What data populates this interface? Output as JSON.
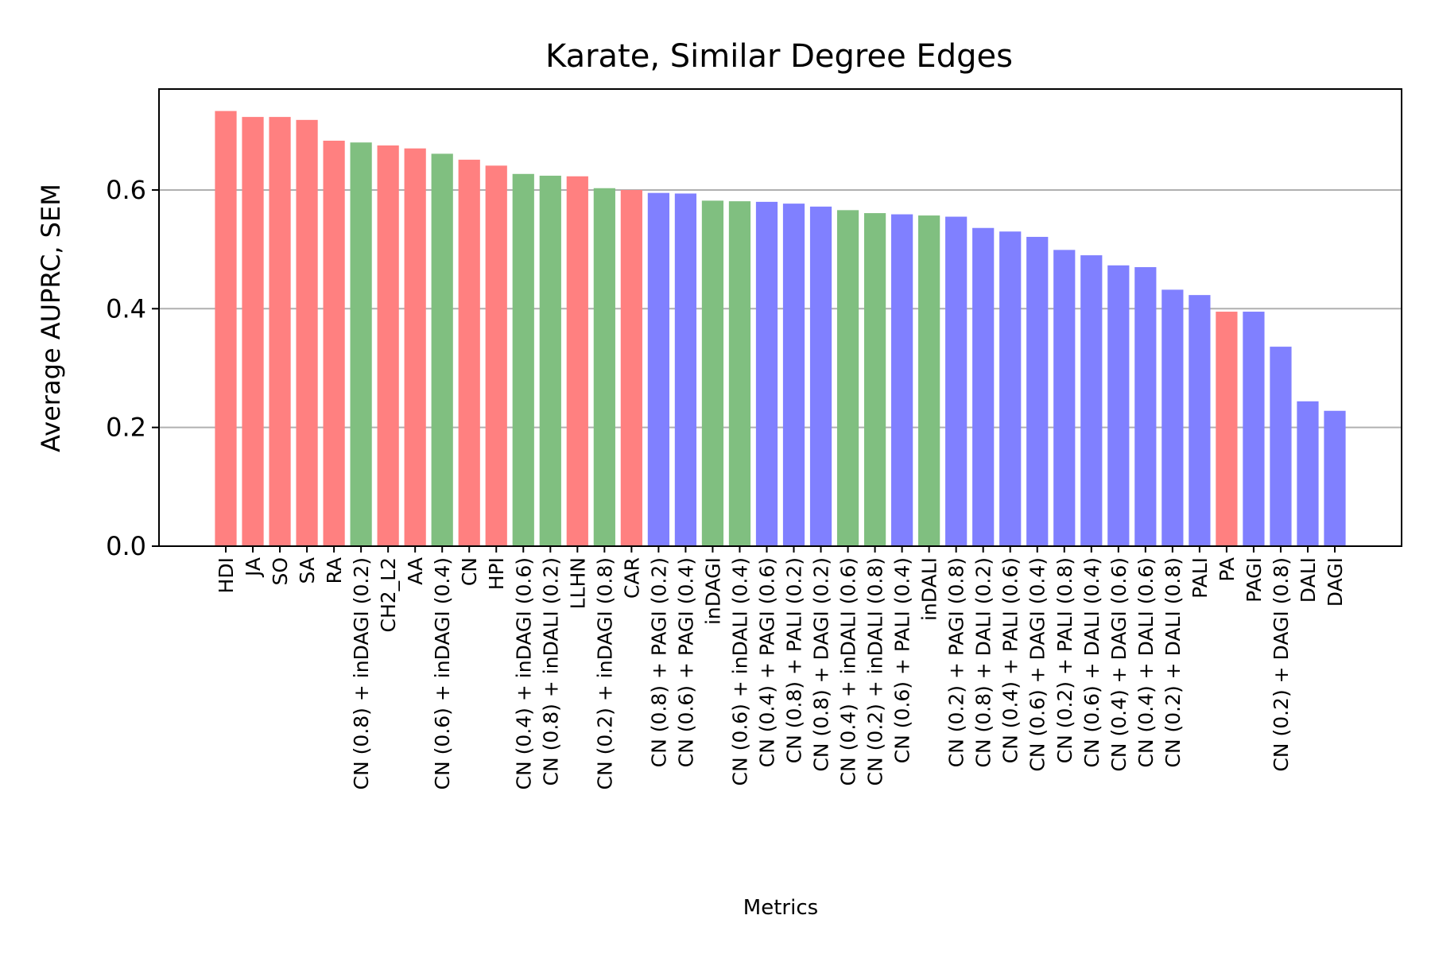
{
  "chart_data": {
    "type": "bar",
    "title": "Karate, Similar Degree Edges",
    "xlabel": "Metrics",
    "ylabel": "Average AUPRC, SEM",
    "ylim": [
      0,
      0.77
    ],
    "yticks": [
      "0.0",
      "0.2",
      "0.4",
      "0.6"
    ],
    "grid": "horizontal",
    "colors": {
      "red": "#ff8080",
      "green": "#80bf80",
      "blue": "#8080ff",
      "grid": "#b0b0b0"
    },
    "categories": [
      "HDI",
      "JA",
      "SO",
      "SA",
      "RA",
      "CN (0.8) + inDAGI (0.2)",
      "CH2_L2",
      "AA",
      "CN (0.6) + inDAGI (0.4)",
      "CN",
      "HPI",
      "CN (0.4) + inDAGI (0.6)",
      "CN (0.8) + inDALI (0.2)",
      "LLHN",
      "CN (0.2) + inDAGI (0.8)",
      "CAR",
      "CN (0.8) + PAGI (0.2)",
      "CN (0.6) + PAGI (0.4)",
      "inDAGI",
      "CN (0.6) + inDALI (0.4)",
      "CN (0.4) + PAGI (0.6)",
      "CN (0.8) + PALI (0.2)",
      "CN (0.8) + DAGI (0.2)",
      "CN (0.4) + inDALI (0.6)",
      "CN (0.2) + inDALI (0.8)",
      "CN (0.6) + PALI (0.4)",
      "inDALI",
      "CN (0.2) + PAGI (0.8)",
      "CN (0.8) + DALI (0.2)",
      "CN (0.4) + PALI (0.6)",
      "CN (0.6) + DAGI (0.4)",
      "CN (0.2) + PALI (0.8)",
      "CN (0.6) + DALI (0.4)",
      "CN (0.4) + DAGI (0.6)",
      "CN (0.4) + DALI (0.6)",
      "CN (0.2) + DALI (0.8)",
      "PALI",
      "PA",
      "PAGI",
      "CN (0.2) + DAGI (0.8)",
      "DALI",
      "DAGI"
    ],
    "values": [
      0.733,
      0.723,
      0.723,
      0.718,
      0.683,
      0.68,
      0.675,
      0.67,
      0.661,
      0.651,
      0.641,
      0.627,
      0.624,
      0.623,
      0.603,
      0.6,
      0.595,
      0.594,
      0.582,
      0.581,
      0.58,
      0.577,
      0.572,
      0.566,
      0.561,
      0.559,
      0.557,
      0.555,
      0.536,
      0.53,
      0.521,
      0.499,
      0.49,
      0.473,
      0.47,
      0.432,
      0.423,
      0.395,
      0.395,
      0.336,
      0.244,
      0.228
    ],
    "bar_colors": [
      "red",
      "red",
      "red",
      "red",
      "red",
      "green",
      "red",
      "red",
      "green",
      "red",
      "red",
      "green",
      "green",
      "red",
      "green",
      "red",
      "blue",
      "blue",
      "green",
      "green",
      "blue",
      "blue",
      "blue",
      "green",
      "green",
      "blue",
      "green",
      "blue",
      "blue",
      "blue",
      "blue",
      "blue",
      "blue",
      "blue",
      "blue",
      "blue",
      "blue",
      "red",
      "blue",
      "blue",
      "blue",
      "blue"
    ]
  }
}
